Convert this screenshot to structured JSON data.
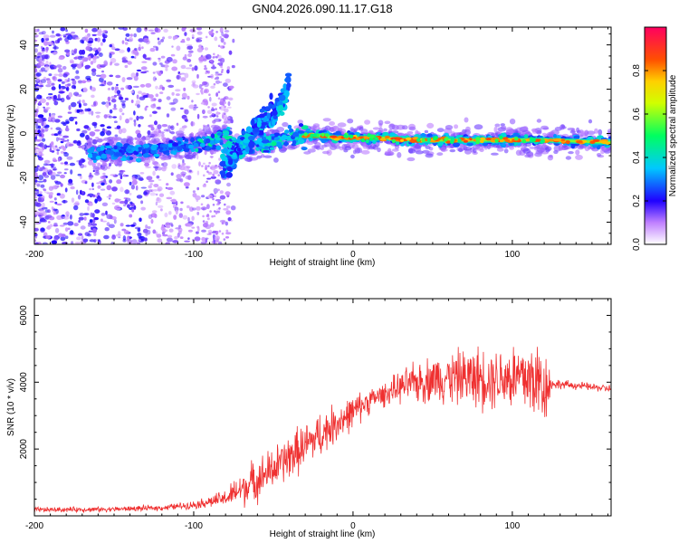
{
  "title": "GN04.2026.090.11.17.G18",
  "chart_data": [
    {
      "type": "heatmap",
      "name": "spectrogram",
      "xlabel": "Height of straight line (km)",
      "ylabel": "Frequency (Hz)",
      "xlim": [
        -200,
        162
      ],
      "ylim": [
        -50,
        48
      ],
      "x_ticks": [
        -200,
        -100,
        0,
        100
      ],
      "x_tick_labels": [
        "-200",
        "-100",
        "0",
        "100"
      ],
      "y_ticks": [
        -40,
        -20,
        0,
        20,
        40
      ],
      "y_tick_labels": [
        "-40",
        "-20",
        "0",
        "20",
        "40"
      ],
      "colorbar": {
        "label": "Normalized spectral amplitude",
        "range": [
          0,
          1
        ],
        "ticks": [
          0.0,
          0.2,
          0.4,
          0.6,
          0.8
        ],
        "tick_labels": [
          "0.0",
          "0.2",
          "0.4",
          "0.6",
          "0.8"
        ]
      },
      "ridge": {
        "x": [
          -160,
          -140,
          -120,
          -100,
          -90,
          -80,
          -70,
          -60,
          -50,
          -40,
          -30,
          -20,
          -10,
          0,
          20,
          40,
          60,
          80,
          100,
          120,
          162
        ],
        "y": [
          -9,
          -8,
          -7,
          -5,
          -3,
          -2,
          -7,
          -5,
          -3,
          -2,
          -1,
          -1,
          -2,
          -2,
          -2,
          -3,
          -3,
          -3,
          -3,
          -3,
          -4
        ]
      },
      "secondary_branch": {
        "x": [
          -82,
          -75,
          -68,
          -60,
          -52,
          -45,
          -40
        ],
        "y": [
          -14,
          -10,
          -4,
          2,
          8,
          14,
          22
        ]
      }
    },
    {
      "type": "line",
      "name": "snr",
      "xlabel": "Height of straight line (km)",
      "ylabel": "SNR (10 * v/v)",
      "xlim": [
        -200,
        162
      ],
      "ylim": [
        0,
        6500
      ],
      "x_ticks": [
        -200,
        -100,
        0,
        100
      ],
      "x_tick_labels": [
        "-200",
        "-100",
        "0",
        "100"
      ],
      "y_ticks": [
        2000,
        4000,
        6000
      ],
      "y_tick_labels": [
        "2000",
        "4000",
        "6000"
      ],
      "color": "#ef3030",
      "envelope": {
        "x": [
          -200,
          -150,
          -120,
          -100,
          -80,
          -70,
          -60,
          -50,
          -40,
          -30,
          -20,
          -10,
          0,
          10,
          20,
          30,
          40,
          50,
          60,
          70,
          80,
          90,
          100,
          110,
          115,
          120,
          125,
          140,
          162
        ],
        "mean": [
          180,
          200,
          240,
          330,
          520,
          800,
          1100,
          1400,
          1750,
          2100,
          2450,
          2800,
          3100,
          3450,
          3650,
          3850,
          4000,
          4100,
          4150,
          4150,
          4150,
          4150,
          4150,
          4100,
          4050,
          3900,
          3950,
          3900,
          3800
        ],
        "spread": [
          100,
          100,
          110,
          150,
          320,
          700,
          800,
          850,
          900,
          900,
          850,
          750,
          650,
          500,
          450,
          600,
          800,
          900,
          1000,
          1100,
          1200,
          1200,
          1400,
          1600,
          1600,
          1700,
          200,
          150,
          150
        ]
      }
    }
  ]
}
